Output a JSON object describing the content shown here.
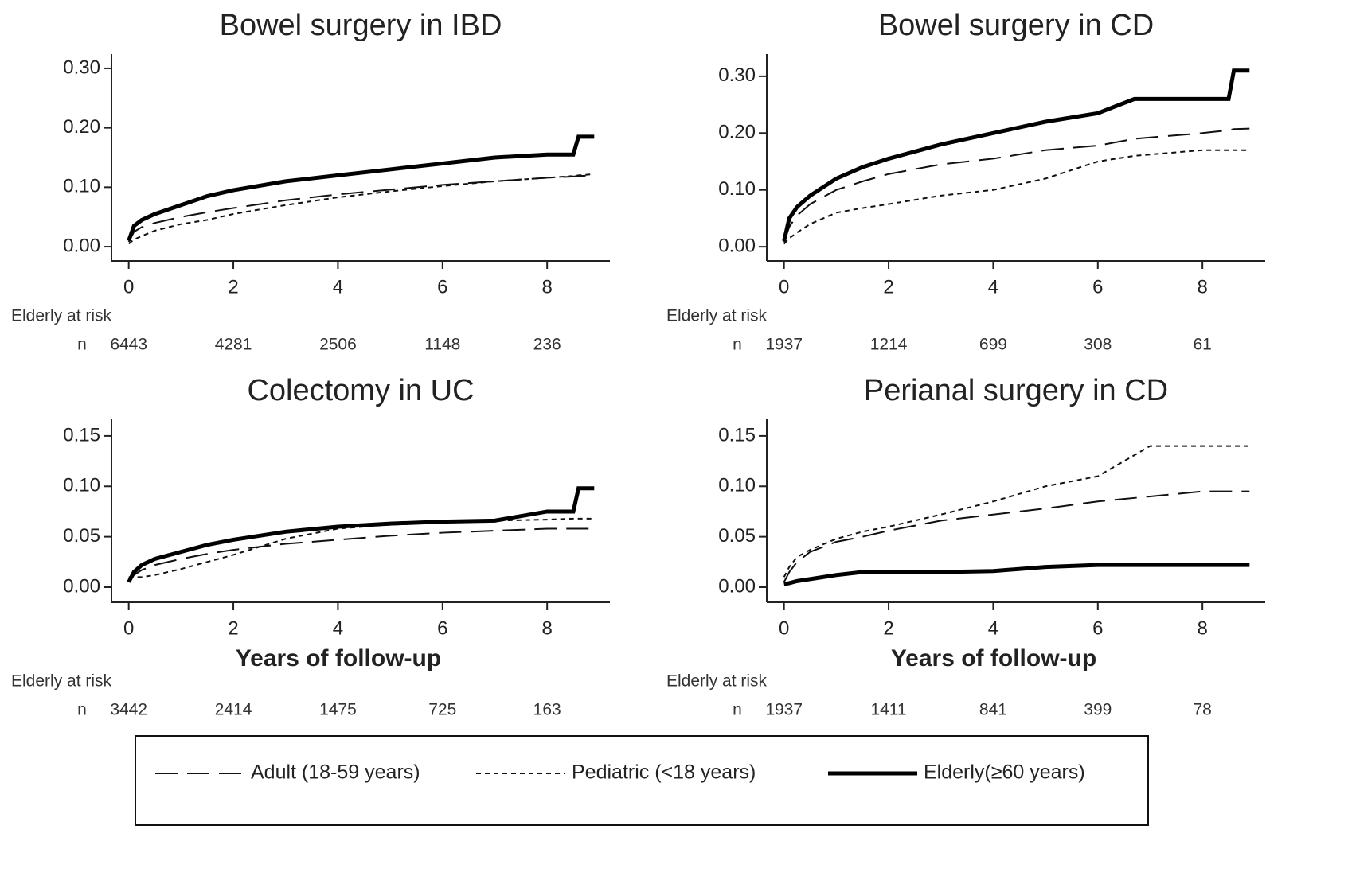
{
  "chart_data": [
    {
      "type": "line",
      "title": "Bowel surgery in IBD",
      "x": [
        0,
        0.1,
        0.25,
        0.5,
        1,
        1.5,
        2,
        3,
        4,
        5,
        6,
        7,
        8,
        8.5,
        8.6,
        8.9
      ],
      "xlim": [
        -0.33,
        9.2
      ],
      "xticks": [
        0,
        2,
        4,
        6,
        8
      ],
      "ylim": [
        -0.024,
        0.324
      ],
      "yticks": [
        {
          "value": 0,
          "label": "0.00"
        },
        {
          "value": 0.1,
          "label": "0.10"
        },
        {
          "value": 0.2,
          "label": "0.20"
        },
        {
          "value": 0.3,
          "label": "0.30"
        }
      ],
      "series": [
        {
          "name": "Adult (18-59 years)",
          "color": "#111",
          "line_style": "long-dash",
          "values": [
            0.008,
            0.025,
            0.033,
            0.04,
            0.05,
            0.058,
            0.065,
            0.078,
            0.088,
            0.096,
            0.104,
            0.11,
            0.116,
            0.118,
            0.119,
            0.12
          ]
        },
        {
          "name": "Pediatric (<18 years)",
          "color": "#111",
          "line_style": "short-dash",
          "values": [
            0.005,
            0.012,
            0.018,
            0.027,
            0.038,
            0.045,
            0.055,
            0.07,
            0.083,
            0.093,
            0.102,
            0.11,
            0.116,
            0.119,
            0.12,
            0.122
          ]
        },
        {
          "name": "Elderly(≥60 years)",
          "color": "#000",
          "line_style": "thick",
          "values": [
            0.01,
            0.035,
            0.045,
            0.055,
            0.07,
            0.085,
            0.095,
            0.11,
            0.12,
            0.13,
            0.14,
            0.15,
            0.155,
            0.155,
            0.185,
            0.185
          ]
        }
      ],
      "risk_label": "Elderly at risk",
      "risk_n_label": "n",
      "risk_x": [
        0,
        2,
        4,
        6,
        8
      ],
      "risk_values": [
        6443,
        4281,
        2506,
        1148,
        236
      ]
    },
    {
      "type": "line",
      "title": "Bowel surgery in CD",
      "x": [
        0,
        0.1,
        0.25,
        0.5,
        1,
        1.5,
        2,
        3,
        4,
        5,
        6,
        6.7,
        8,
        8.5,
        8.6,
        8.9
      ],
      "xlim": [
        -0.33,
        9.2
      ],
      "xticks": [
        0,
        2,
        4,
        6,
        8
      ],
      "ylim": [
        -0.025,
        0.339
      ],
      "yticks": [
        {
          "value": 0,
          "label": "0.00"
        },
        {
          "value": 0.1,
          "label": "0.10"
        },
        {
          "value": 0.2,
          "label": "0.20"
        },
        {
          "value": 0.3,
          "label": "0.30"
        }
      ],
      "series": [
        {
          "color": "#111",
          "line_style": "long-dash",
          "values": [
            0.008,
            0.035,
            0.055,
            0.075,
            0.1,
            0.115,
            0.128,
            0.145,
            0.155,
            0.17,
            0.178,
            0.19,
            0.2,
            0.205,
            0.207,
            0.208
          ]
        },
        {
          "color": "#111",
          "line_style": "short-dash",
          "values": [
            0.005,
            0.015,
            0.025,
            0.04,
            0.06,
            0.068,
            0.075,
            0.09,
            0.1,
            0.12,
            0.15,
            0.16,
            0.17,
            0.17,
            0.17,
            0.17
          ]
        },
        {
          "color": "#000",
          "line_style": "thick",
          "values": [
            0.01,
            0.05,
            0.07,
            0.09,
            0.12,
            0.14,
            0.155,
            0.18,
            0.2,
            0.22,
            0.235,
            0.26,
            0.26,
            0.26,
            0.31,
            0.31
          ]
        }
      ],
      "risk_label": "Elderly at risk",
      "risk_n_label": "n",
      "risk_x": [
        0,
        2,
        4,
        6,
        8
      ],
      "risk_values": [
        1937,
        1214,
        699,
        308,
        61
      ]
    },
    {
      "type": "line",
      "title": "Colectomy in UC",
      "xlabel": "Years of follow-up",
      "x": [
        0,
        0.1,
        0.25,
        0.5,
        1,
        1.5,
        2,
        3,
        4,
        5,
        6,
        7,
        8,
        8.5,
        8.6,
        8.9
      ],
      "xlim": [
        -0.33,
        9.2
      ],
      "xticks": [
        0,
        2,
        4,
        6,
        8
      ],
      "ylim": [
        -0.015,
        0.1665
      ],
      "yticks": [
        {
          "value": 0,
          "label": "0.00"
        },
        {
          "value": 0.05,
          "label": "0.05"
        },
        {
          "value": 0.1,
          "label": "0.10"
        },
        {
          "value": 0.15,
          "label": "0.15"
        }
      ],
      "series": [
        {
          "color": "#111",
          "line_style": "long-dash",
          "values": [
            0.005,
            0.012,
            0.017,
            0.022,
            0.028,
            0.033,
            0.037,
            0.043,
            0.047,
            0.051,
            0.054,
            0.056,
            0.058,
            0.058,
            0.058,
            0.058
          ]
        },
        {
          "color": "#111",
          "line_style": "short-dash",
          "values": [
            0.01,
            0.01,
            0.01,
            0.012,
            0.018,
            0.025,
            0.032,
            0.048,
            0.058,
            0.062,
            0.064,
            0.066,
            0.067,
            0.068,
            0.068,
            0.068
          ]
        },
        {
          "color": "#000",
          "line_style": "thick",
          "values": [
            0.005,
            0.015,
            0.022,
            0.028,
            0.035,
            0.042,
            0.047,
            0.055,
            0.06,
            0.063,
            0.065,
            0.066,
            0.075,
            0.075,
            0.098,
            0.098
          ]
        }
      ],
      "risk_label": "Elderly at risk",
      "risk_n_label": "n",
      "risk_x": [
        0,
        2,
        4,
        6,
        8
      ],
      "risk_values": [
        3442,
        2414,
        1475,
        725,
        163
      ]
    },
    {
      "type": "line",
      "title": "Perianal surgery in CD",
      "xlabel": "Years of follow-up",
      "x": [
        0,
        0.1,
        0.25,
        0.5,
        1,
        1.5,
        2,
        3,
        4,
        5,
        6,
        7,
        8,
        8.5,
        8.6,
        8.9
      ],
      "xlim": [
        -0.33,
        9.2
      ],
      "xticks": [
        0,
        2,
        4,
        6,
        8
      ],
      "ylim": [
        -0.015,
        0.1665
      ],
      "yticks": [
        {
          "value": 0,
          "label": "0.00"
        },
        {
          "value": 0.05,
          "label": "0.05"
        },
        {
          "value": 0.1,
          "label": "0.10"
        },
        {
          "value": 0.15,
          "label": "0.15"
        }
      ],
      "series": [
        {
          "color": "#111",
          "line_style": "long-dash",
          "values": [
            0.005,
            0.015,
            0.025,
            0.035,
            0.045,
            0.05,
            0.056,
            0.066,
            0.072,
            0.078,
            0.085,
            0.09,
            0.095,
            0.095,
            0.095,
            0.095
          ]
        },
        {
          "color": "#111",
          "line_style": "short-dash",
          "values": [
            0.01,
            0.02,
            0.03,
            0.037,
            0.048,
            0.055,
            0.06,
            0.072,
            0.085,
            0.1,
            0.11,
            0.14,
            0.14,
            0.14,
            0.14,
            0.14
          ]
        },
        {
          "color": "#000",
          "line_style": "thick",
          "values": [
            0.003,
            0.004,
            0.006,
            0.008,
            0.012,
            0.015,
            0.015,
            0.015,
            0.016,
            0.02,
            0.022,
            0.022,
            0.022,
            0.022,
            0.022,
            0.022
          ]
        }
      ],
      "risk_label": "Elderly at risk",
      "risk_n_label": "n",
      "risk_x": [
        0,
        2,
        4,
        6,
        8
      ],
      "risk_values": [
        1937,
        1411,
        841,
        399,
        78
      ]
    }
  ]
}
